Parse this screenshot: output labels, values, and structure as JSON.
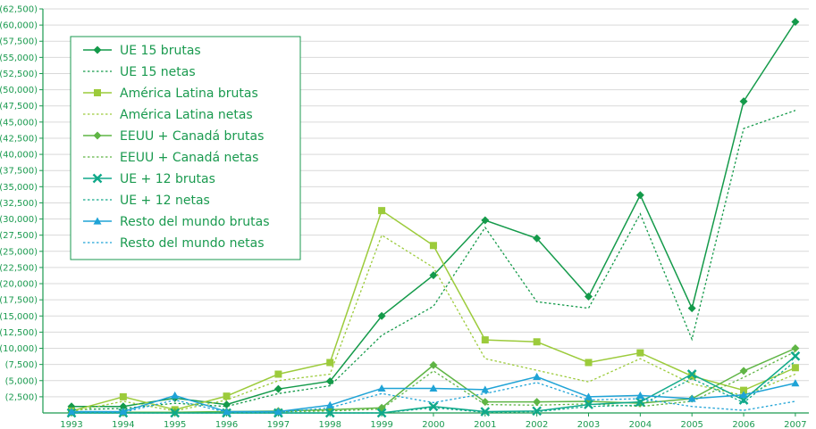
{
  "colors": {
    "axis": "#1a9a4f",
    "grid": "#d9d9d9",
    "ue15": "#149a4a",
    "america": "#9ccb3b",
    "eeuu": "#5fb545",
    "ue12": "#10a98a",
    "resto": "#1fa3d6"
  },
  "chart_data": {
    "type": "line",
    "title": "",
    "xlabel": "",
    "ylabel": "",
    "x": [
      "1993",
      "1994",
      "1995",
      "1996",
      "1997",
      "1998",
      "1999",
      "2000",
      "2001",
      "2002",
      "2003",
      "2004",
      "2005",
      "2006",
      "2007"
    ],
    "ylim": [
      0,
      62500
    ],
    "yticks": [
      2500,
      5000,
      7500,
      10000,
      12500,
      15000,
      17500,
      20000,
      22500,
      25000,
      27500,
      30000,
      32500,
      35000,
      37500,
      40000,
      42500,
      45000,
      47500,
      50000,
      52500,
      55000,
      57500,
      60000,
      62500
    ],
    "ytick_labels": [
      "(2,500)",
      "(5,000)",
      "(7,500)",
      "(10,000)",
      "(12,500)",
      "(15,000)",
      "(17,500)",
      "(20,000)",
      "(22,500)",
      "(25,000)",
      "(27,500)",
      "(30,000)",
      "(32,500)",
      "(35,000)",
      "(37,500)",
      "(40,000)",
      "(42,500)",
      "(45,000)",
      "(47,500)",
      "(50,000)",
      "(52,500)",
      "(55,000)",
      "(57,500)",
      "(60,000)",
      "(62,500)"
    ],
    "grid": true,
    "legend_position": "top-left",
    "series": [
      {
        "name": "UE 15 brutas",
        "color": "#149a4a",
        "style": "solid",
        "marker": "diamond",
        "values": [
          1000,
          1000,
          2300,
          1300,
          3700,
          4900,
          15000,
          21300,
          29800,
          27000,
          18000,
          33700,
          16200,
          48200,
          60500
        ]
      },
      {
        "name": "UE 15 netas",
        "color": "#149a4a",
        "style": "dotted",
        "marker": "none",
        "values": [
          500,
          700,
          1500,
          1000,
          3000,
          4200,
          12000,
          16500,
          28700,
          17200,
          16200,
          30800,
          11400,
          44000,
          46800
        ]
      },
      {
        "name": "América Latina brutas",
        "color": "#9ccb3b",
        "style": "solid",
        "marker": "square",
        "values": [
          300,
          2500,
          500,
          2600,
          6000,
          7800,
          31300,
          25900,
          11300,
          11000,
          7800,
          9300,
          5700,
          3500,
          7000
        ]
      },
      {
        "name": "América Latina netas",
        "color": "#9ccb3b",
        "style": "dotted",
        "marker": "none",
        "values": [
          200,
          1800,
          300,
          2000,
          5000,
          6000,
          27500,
          22500,
          8400,
          6600,
          4800,
          8400,
          4500,
          2700,
          6000
        ]
      },
      {
        "name": "EEUU + Canadá brutas",
        "color": "#5fb545",
        "style": "solid",
        "marker": "diamond",
        "values": [
          100,
          100,
          100,
          200,
          300,
          500,
          800,
          7400,
          1700,
          1700,
          1800,
          1500,
          2200,
          6500,
          10000
        ]
      },
      {
        "name": "EEUU + Canadá netas",
        "color": "#5fb545",
        "style": "dotted",
        "marker": "none",
        "values": [
          50,
          50,
          50,
          100,
          200,
          300,
          600,
          6500,
          1300,
          1200,
          1400,
          1000,
          1800,
          5500,
          9500
        ]
      },
      {
        "name": "UE + 12 brutas",
        "color": "#10a98a",
        "style": "solid",
        "marker": "x",
        "values": [
          0,
          0,
          0,
          0,
          0,
          0,
          0,
          1000,
          200,
          300,
          1300,
          1700,
          6000,
          2000,
          8800
        ]
      },
      {
        "name": "UE + 12 netas",
        "color": "#10a98a",
        "style": "dotted",
        "marker": "none",
        "values": [
          0,
          0,
          0,
          0,
          0,
          0,
          0,
          800,
          100,
          200,
          1000,
          1200,
          5300,
          1600,
          8000
        ]
      },
      {
        "name": "Resto del mundo brutas",
        "color": "#1fa3d6",
        "style": "solid",
        "marker": "triangle",
        "values": [
          200,
          200,
          2700,
          200,
          200,
          1200,
          3800,
          3800,
          3600,
          5600,
          2500,
          2700,
          2200,
          2800,
          4600
        ]
      },
      {
        "name": "Resto del mundo netas",
        "color": "#1fa3d6",
        "style": "dotted",
        "marker": "none",
        "values": [
          100,
          100,
          2000,
          100,
          100,
          800,
          3000,
          1600,
          3000,
          4700,
          2000,
          2200,
          1000,
          400,
          1800
        ]
      }
    ]
  }
}
